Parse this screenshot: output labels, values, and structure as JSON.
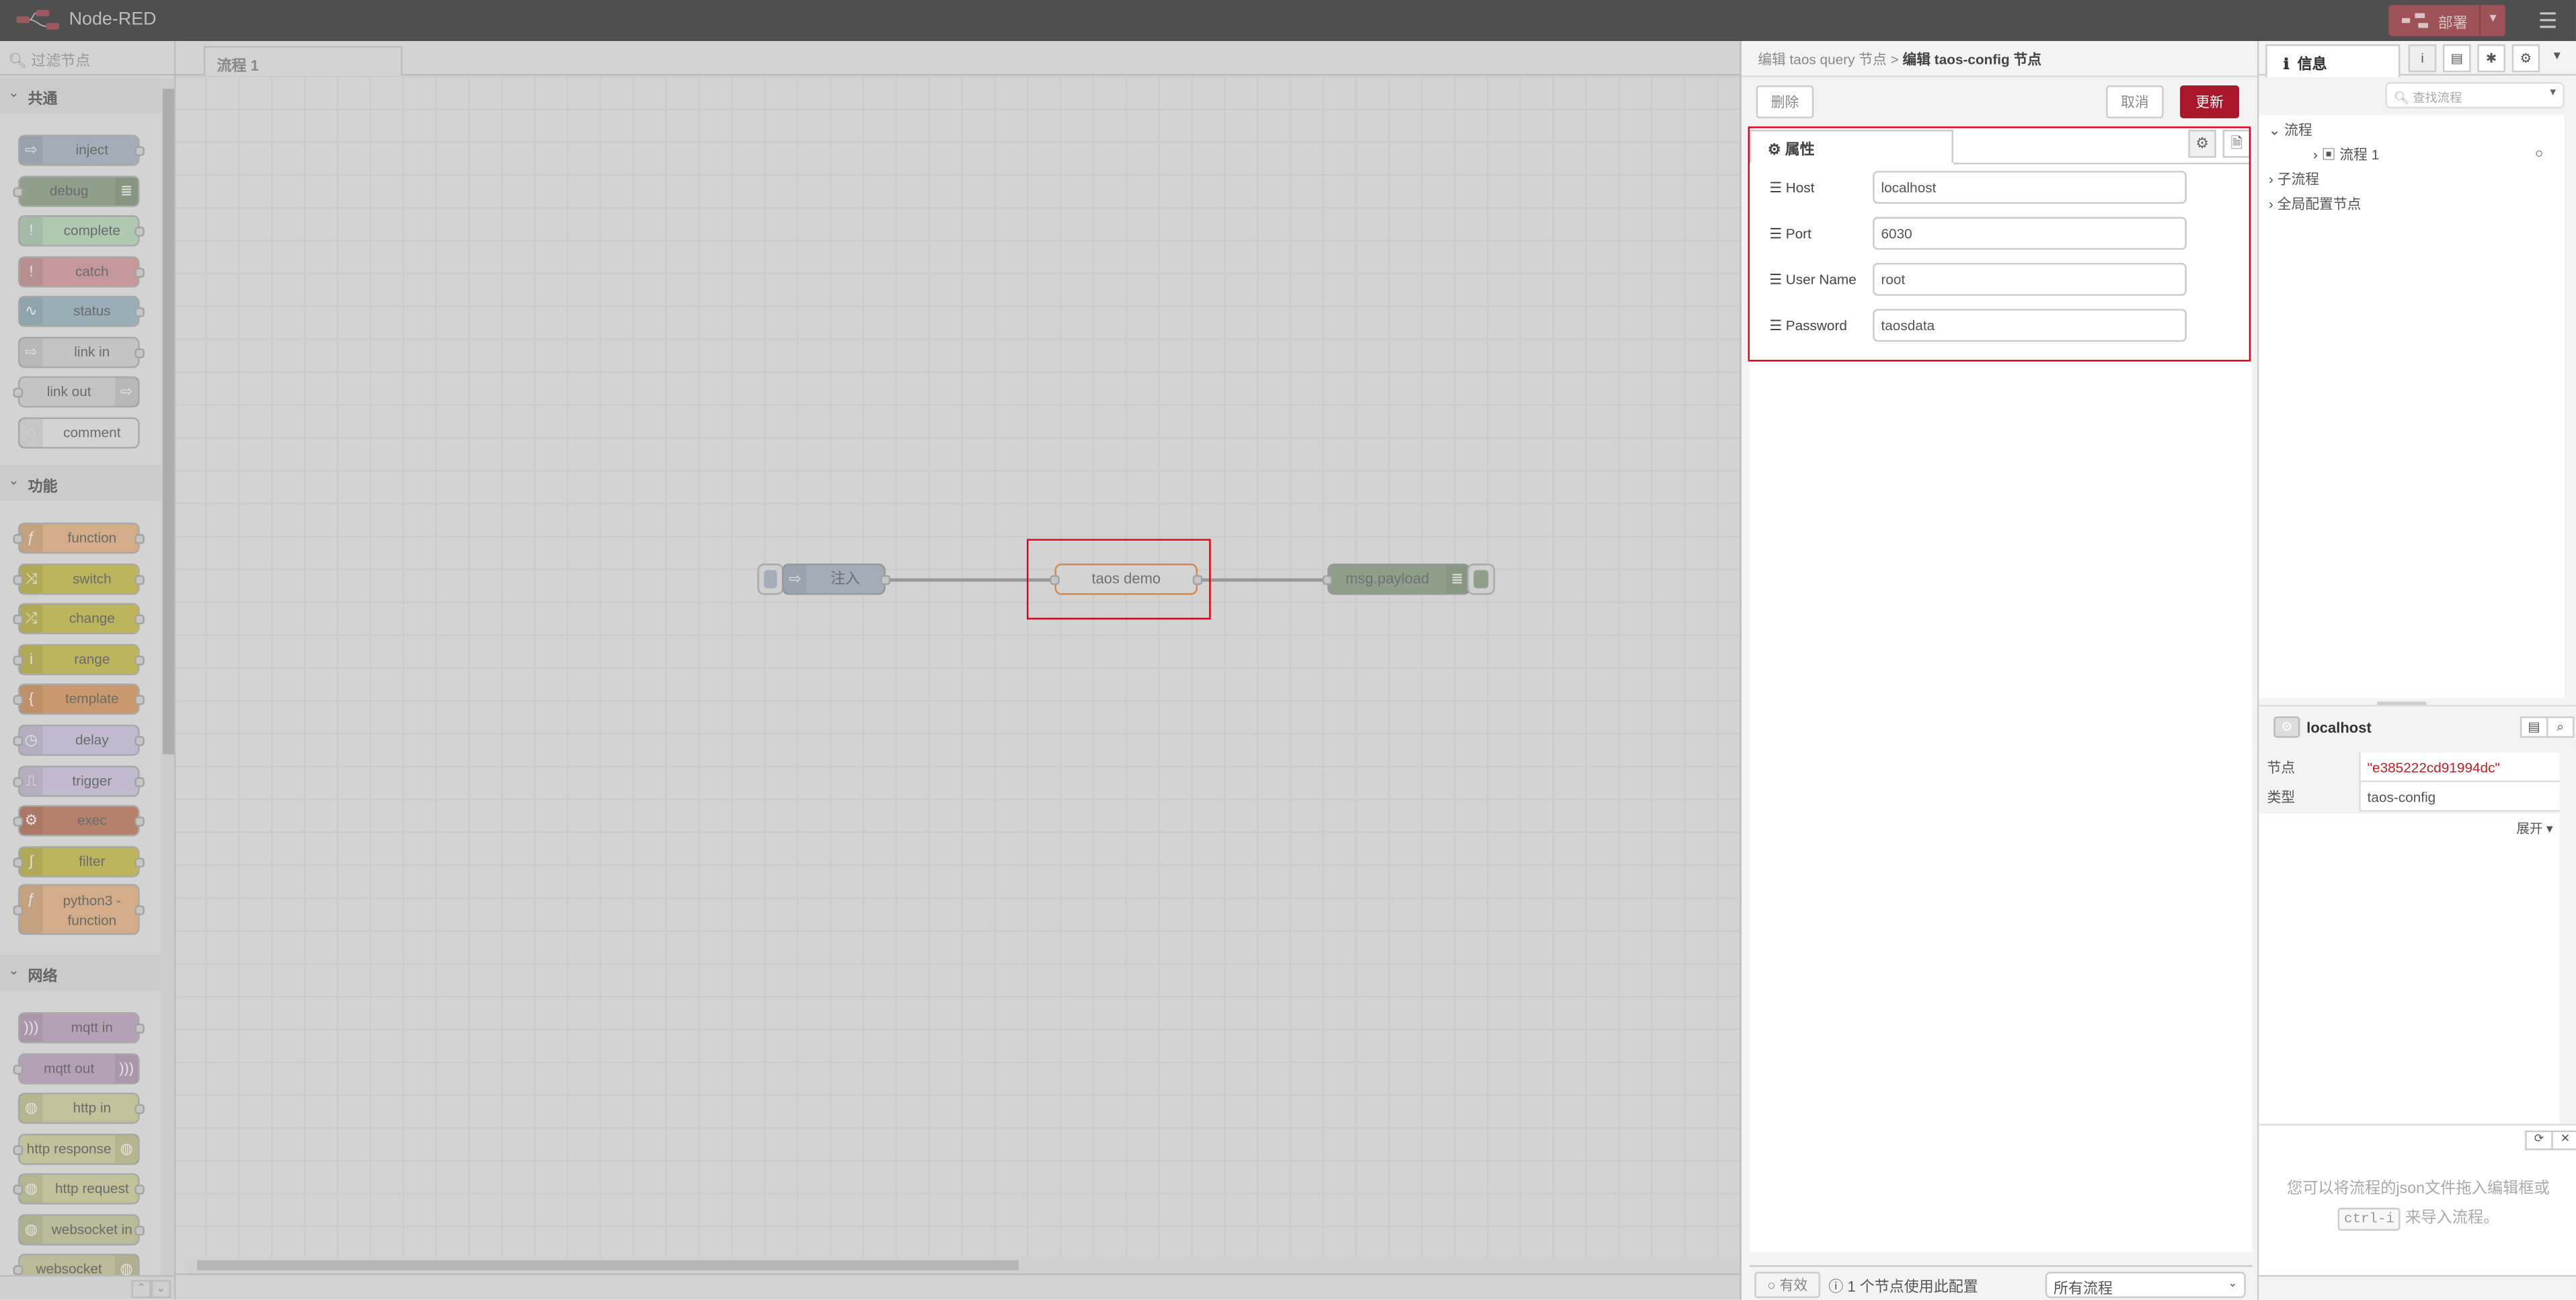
{
  "header": {
    "title": "Node-RED",
    "deploy_label": "部署",
    "menu_icon": "hamburger-icon",
    "accent": "#9e5157"
  },
  "palette": {
    "filter_placeholder": "过滤节点",
    "categories": [
      {
        "label": "共通",
        "nodes": [
          {
            "label": "inject",
            "color": "#a3adb8",
            "icon": "⇨",
            "icon_side": "left",
            "in": false,
            "out": true
          },
          {
            "label": "debug",
            "color": "#8fa08a",
            "icon": "≣",
            "icon_side": "right",
            "in": true,
            "out": false
          },
          {
            "label": "complete",
            "color": "#b0c7b0",
            "icon": "!",
            "icon_side": "left",
            "in": false,
            "out": true
          },
          {
            "label": "catch",
            "color": "#c49898",
            "icon": "!",
            "icon_side": "left",
            "in": false,
            "out": true
          },
          {
            "label": "status",
            "color": "#98afb8",
            "icon": "∿",
            "icon_side": "left",
            "in": false,
            "out": true
          },
          {
            "label": "link in",
            "color": "#c4c4c4",
            "icon": "⇨",
            "icon_side": "left",
            "in": false,
            "out": true
          },
          {
            "label": "link out",
            "color": "#c4c4c4",
            "icon": "⇨",
            "icon_side": "right",
            "in": true,
            "out": false
          },
          {
            "label": "comment",
            "color": "#d3d3d3",
            "icon": "◌",
            "icon_side": "left",
            "in": false,
            "out": false
          }
        ]
      },
      {
        "label": "功能",
        "nodes": [
          {
            "label": "function",
            "color": "#d2ad87",
            "icon": "ƒ",
            "icon_side": "left",
            "in": true,
            "out": true
          },
          {
            "label": "switch",
            "color": "#bcb55c",
            "icon": "⤨",
            "icon_side": "left",
            "in": true,
            "out": true
          },
          {
            "label": "change",
            "color": "#bcb55c",
            "icon": "⤮",
            "icon_side": "left",
            "in": true,
            "out": true
          },
          {
            "label": "range",
            "color": "#bcb55c",
            "icon": "i",
            "icon_side": "left",
            "in": true,
            "out": true
          },
          {
            "label": "template",
            "color": "#c99a6e",
            "icon": "{",
            "icon_side": "left",
            "in": true,
            "out": true
          },
          {
            "label": "delay",
            "color": "#bfbacd",
            "icon": "◷",
            "icon_side": "left",
            "in": true,
            "out": true
          },
          {
            "label": "trigger",
            "color": "#bfbacd",
            "icon": "⎍",
            "icon_side": "left",
            "in": true,
            "out": true
          },
          {
            "label": "exec",
            "color": "#b5806c",
            "icon": "⚙",
            "icon_side": "left",
            "in": true,
            "out": true
          },
          {
            "label": "filter",
            "color": "#bcb55c",
            "icon": "∫",
            "icon_side": "left",
            "in": true,
            "out": true
          },
          {
            "label": "python3 - function",
            "color": "#d2ad87",
            "icon": "ƒ",
            "icon_side": "left",
            "in": true,
            "out": true,
            "tall": true
          }
        ]
      },
      {
        "label": "网络",
        "nodes": [
          {
            "label": "mqtt in",
            "color": "#b5a1b5",
            "icon": ")))",
            "icon_side": "left",
            "in": false,
            "out": true
          },
          {
            "label": "mqtt out",
            "color": "#b5a1b5",
            "icon": ")))",
            "icon_side": "right",
            "in": true,
            "out": false
          },
          {
            "label": "http in",
            "color": "#c1c19a",
            "icon": "◍",
            "icon_side": "left",
            "in": false,
            "out": true
          },
          {
            "label": "http response",
            "color": "#c1c19a",
            "icon": "◍",
            "icon_side": "right",
            "in": true,
            "out": false
          },
          {
            "label": "http request",
            "color": "#c1c19a",
            "icon": "◍",
            "icon_side": "left",
            "in": true,
            "out": true
          },
          {
            "label": "websocket in",
            "color": "#babb98",
            "icon": "◍",
            "icon_side": "left",
            "in": false,
            "out": true
          },
          {
            "label": "websocket",
            "color": "#babb98",
            "icon": "◍",
            "icon_side": "right",
            "in": true,
            "out": false
          }
        ]
      }
    ]
  },
  "workspace": {
    "tab": "流程 1",
    "nodes": {
      "inject": "注入",
      "taos": "taos demo",
      "debug": "msg.payload"
    }
  },
  "editor": {
    "breadcrumb_parent": "编辑 taos query 节点",
    "breadcrumb_sep": " > ",
    "breadcrumb_current": "编辑 taos-config 节点",
    "delete": "删除",
    "cancel": "取消",
    "update": "更新",
    "update_color": "#a8172a",
    "properties_tab": "属性",
    "fields": [
      {
        "label": "Host",
        "value": "localhost"
      },
      {
        "label": "Port",
        "value": "6030"
      },
      {
        "label": "User Name",
        "value": "root"
      },
      {
        "label": "Password",
        "value": "taosdata"
      }
    ],
    "footer": {
      "enabled": "有效",
      "usage": "1 个节点使用此配置",
      "scope": "所有流程"
    }
  },
  "sidebar": {
    "tab": "信息",
    "search_placeholder": "查找流程",
    "tree": {
      "flows": "流程",
      "flow1": "流程 1",
      "subflows": "子流程",
      "global": "全局配置节点"
    },
    "info": {
      "title": "localhost",
      "rows": [
        {
          "key": "节点",
          "value": "\"e385222cd91994dc\""
        },
        {
          "key": "类型",
          "value": "taos-config"
        }
      ],
      "expand": "展开",
      "id_color": "#c02020"
    },
    "help": {
      "line1": "您可以将流程的json文件拖入编辑框或",
      "kbd": "ctrl-i",
      "line2": "来导入流程。"
    }
  }
}
